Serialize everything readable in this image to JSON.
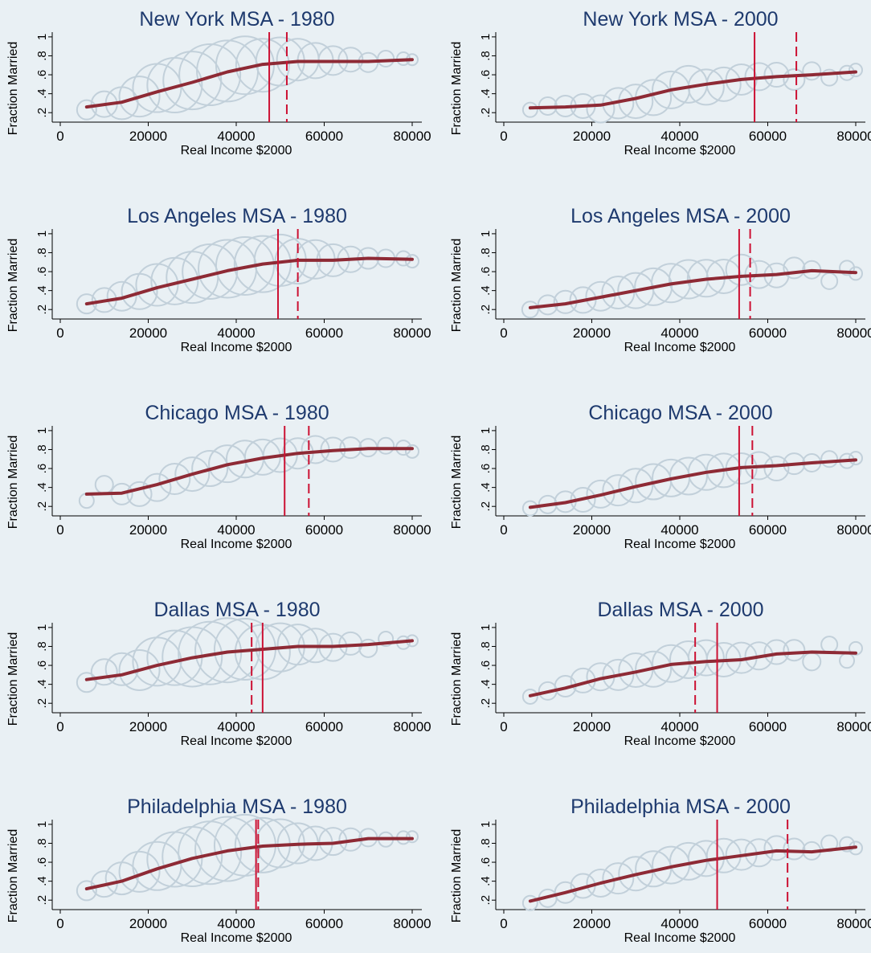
{
  "colors": {
    "background": "#e9f0f4",
    "title": "#1e3a6e",
    "bubble": "#c2d0da",
    "fit_line": "#8e2a35",
    "vline": "#cc1133",
    "axis": "#000000"
  },
  "chart_data": [
    {
      "type": "scatter",
      "title": "New York MSA - 1980",
      "xlabel": "Real Income $2000",
      "ylabel": "Fraction Married",
      "xlim": [
        0,
        80000
      ],
      "ylim": [
        0.1,
        1.05
      ],
      "x_ticks": [
        "0",
        "20000",
        "40000",
        "60000",
        "80000"
      ],
      "y_ticks": [
        ".2",
        ".4",
        ".6",
        ".8",
        "1"
      ],
      "solid_vline": 47500,
      "dashed_vline": 51500,
      "fit": {
        "x": [
          6000,
          14000,
          22000,
          30000,
          38000,
          46000,
          54000,
          62000,
          70000,
          80000
        ],
        "y": [
          0.26,
          0.31,
          0.42,
          0.52,
          0.63,
          0.71,
          0.74,
          0.74,
          0.74,
          0.76
        ]
      },
      "points": {
        "x": [
          6000,
          10000,
          14000,
          18000,
          22000,
          26000,
          30000,
          34000,
          38000,
          42000,
          46000,
          50000,
          54000,
          58000,
          62000,
          66000,
          70000,
          74000,
          78000,
          80000
        ],
        "y": [
          0.23,
          0.29,
          0.3,
          0.37,
          0.46,
          0.49,
          0.54,
          0.6,
          0.64,
          0.7,
          0.7,
          0.74,
          0.76,
          0.75,
          0.75,
          0.76,
          0.73,
          0.77,
          0.77,
          0.76
        ],
        "size": [
          12,
          16,
          20,
          25,
          30,
          34,
          36,
          38,
          38,
          36,
          33,
          30,
          26,
          22,
          18,
          15,
          12,
          10,
          8,
          7
        ]
      }
    },
    {
      "type": "scatter",
      "title": "New York MSA - 2000",
      "xlabel": "Real Income $2000",
      "ylabel": "Fraction Married",
      "xlim": [
        0,
        80000
      ],
      "ylim": [
        0.1,
        1.05
      ],
      "x_ticks": [
        "0",
        "20000",
        "40000",
        "60000",
        "80000"
      ],
      "y_ticks": [
        ".2",
        ".4",
        ".6",
        ".8",
        "1"
      ],
      "solid_vline": 57000,
      "dashed_vline": 66500,
      "fit": {
        "x": [
          6000,
          14000,
          22000,
          30000,
          38000,
          46000,
          54000,
          62000,
          70000,
          80000
        ],
        "y": [
          0.25,
          0.26,
          0.28,
          0.35,
          0.44,
          0.5,
          0.55,
          0.58,
          0.6,
          0.63
        ]
      },
      "points": {
        "x": [
          6000,
          10000,
          14000,
          18000,
          22000,
          26000,
          30000,
          34000,
          38000,
          42000,
          46000,
          50000,
          54000,
          58000,
          62000,
          66000,
          70000,
          74000,
          78000,
          80000
        ],
        "y": [
          0.23,
          0.27,
          0.27,
          0.27,
          0.24,
          0.3,
          0.32,
          0.36,
          0.44,
          0.5,
          0.47,
          0.5,
          0.55,
          0.58,
          0.6,
          0.55,
          0.64,
          0.57,
          0.62,
          0.65
        ],
        "size": [
          9,
          11,
          13,
          15,
          17,
          19,
          21,
          22,
          23,
          23,
          22,
          21,
          19,
          17,
          15,
          13,
          11,
          10,
          9,
          8
        ]
      }
    },
    {
      "type": "scatter",
      "title": "Los Angeles MSA - 1980",
      "xlabel": "Real Income $2000",
      "ylabel": "Fraction Married",
      "xlim": [
        0,
        80000
      ],
      "ylim": [
        0.1,
        1.05
      ],
      "x_ticks": [
        "0",
        "20000",
        "40000",
        "60000",
        "80000"
      ],
      "y_ticks": [
        ".2",
        ".4",
        ".6",
        ".8",
        "1"
      ],
      "solid_vline": 49500,
      "dashed_vline": 54000,
      "fit": {
        "x": [
          6000,
          14000,
          22000,
          30000,
          38000,
          46000,
          54000,
          62000,
          70000,
          80000
        ],
        "y": [
          0.26,
          0.32,
          0.43,
          0.52,
          0.61,
          0.68,
          0.72,
          0.72,
          0.74,
          0.73
        ]
      },
      "points": {
        "x": [
          6000,
          10000,
          14000,
          18000,
          22000,
          26000,
          30000,
          34000,
          38000,
          42000,
          46000,
          50000,
          54000,
          58000,
          62000,
          66000,
          70000,
          74000,
          78000,
          80000
        ],
        "y": [
          0.26,
          0.3,
          0.34,
          0.39,
          0.46,
          0.5,
          0.54,
          0.6,
          0.63,
          0.66,
          0.68,
          0.72,
          0.71,
          0.73,
          0.72,
          0.73,
          0.74,
          0.74,
          0.74,
          0.71
        ],
        "size": [
          12,
          15,
          18,
          22,
          26,
          29,
          32,
          34,
          36,
          36,
          35,
          32,
          28,
          24,
          20,
          16,
          13,
          11,
          9,
          8
        ]
      }
    },
    {
      "type": "scatter",
      "title": "Los Angeles MSA - 2000",
      "xlabel": "Real Income $2000",
      "ylabel": "Fraction Married",
      "xlim": [
        0,
        80000
      ],
      "ylim": [
        0.1,
        1.05
      ],
      "x_ticks": [
        "0",
        "20000",
        "40000",
        "60000",
        "80000"
      ],
      "y_ticks": [
        ".2",
        ".4",
        ".6",
        ".8",
        "1"
      ],
      "solid_vline": 53500,
      "dashed_vline": 56000,
      "fit": {
        "x": [
          6000,
          14000,
          22000,
          30000,
          38000,
          46000,
          54000,
          62000,
          70000,
          80000
        ],
        "y": [
          0.22,
          0.26,
          0.33,
          0.4,
          0.47,
          0.52,
          0.55,
          0.57,
          0.61,
          0.59
        ]
      },
      "points": {
        "x": [
          6000,
          10000,
          14000,
          18000,
          22000,
          26000,
          30000,
          34000,
          38000,
          42000,
          46000,
          50000,
          54000,
          58000,
          62000,
          66000,
          70000,
          74000,
          78000,
          80000
        ],
        "y": [
          0.2,
          0.25,
          0.28,
          0.3,
          0.34,
          0.38,
          0.4,
          0.44,
          0.48,
          0.52,
          0.53,
          0.55,
          0.62,
          0.57,
          0.56,
          0.64,
          0.62,
          0.5,
          0.64,
          0.58
        ],
        "size": [
          10,
          12,
          14,
          16,
          18,
          20,
          22,
          23,
          24,
          24,
          23,
          21,
          19,
          17,
          15,
          13,
          11,
          10,
          9,
          8
        ]
      }
    },
    {
      "type": "scatter",
      "title": "Chicago MSA - 1980",
      "xlabel": "Real Income $2000",
      "ylabel": "Fraction Married",
      "xlim": [
        0,
        80000
      ],
      "ylim": [
        0.1,
        1.05
      ],
      "x_ticks": [
        "0",
        "20000",
        "40000",
        "60000",
        "80000"
      ],
      "y_ticks": [
        ".2",
        ".4",
        ".6",
        ".8",
        "1"
      ],
      "solid_vline": 51000,
      "dashed_vline": 56500,
      "fit": {
        "x": [
          6000,
          14000,
          22000,
          30000,
          38000,
          46000,
          54000,
          62000,
          70000,
          80000
        ],
        "y": [
          0.33,
          0.34,
          0.43,
          0.54,
          0.64,
          0.71,
          0.76,
          0.79,
          0.81,
          0.81
        ]
      },
      "points": {
        "x": [
          6000,
          10000,
          14000,
          18000,
          22000,
          26000,
          30000,
          34000,
          38000,
          42000,
          46000,
          50000,
          54000,
          58000,
          62000,
          66000,
          70000,
          74000,
          78000,
          80000
        ],
        "y": [
          0.26,
          0.43,
          0.33,
          0.33,
          0.4,
          0.49,
          0.54,
          0.6,
          0.65,
          0.7,
          0.72,
          0.74,
          0.76,
          0.8,
          0.8,
          0.82,
          0.82,
          0.84,
          0.82,
          0.78
        ],
        "size": [
          9,
          11,
          13,
          15,
          17,
          19,
          21,
          22,
          23,
          23,
          22,
          21,
          19,
          17,
          15,
          13,
          11,
          10,
          9,
          8
        ]
      }
    },
    {
      "type": "scatter",
      "title": "Chicago MSA - 2000",
      "xlabel": "Real Income $2000",
      "ylabel": "Fraction Married",
      "xlim": [
        0,
        80000
      ],
      "ylim": [
        0.1,
        1.05
      ],
      "x_ticks": [
        "0",
        "20000",
        "40000",
        "60000",
        "80000"
      ],
      "y_ticks": [
        ".2",
        ".4",
        ".6",
        ".8",
        "1"
      ],
      "solid_vline": 53500,
      "dashed_vline": 56500,
      "fit": {
        "x": [
          6000,
          14000,
          22000,
          30000,
          38000,
          46000,
          54000,
          62000,
          70000,
          80000
        ],
        "y": [
          0.19,
          0.24,
          0.32,
          0.41,
          0.49,
          0.56,
          0.61,
          0.63,
          0.66,
          0.69
        ]
      },
      "points": {
        "x": [
          6000,
          10000,
          14000,
          18000,
          22000,
          26000,
          30000,
          34000,
          38000,
          42000,
          46000,
          50000,
          54000,
          58000,
          62000,
          66000,
          70000,
          74000,
          78000,
          80000
        ],
        "y": [
          0.18,
          0.22,
          0.25,
          0.27,
          0.33,
          0.37,
          0.42,
          0.46,
          0.5,
          0.52,
          0.56,
          0.58,
          0.6,
          0.63,
          0.6,
          0.65,
          0.66,
          0.7,
          0.68,
          0.71
        ],
        "size": [
          9,
          11,
          13,
          15,
          17,
          19,
          21,
          22,
          23,
          23,
          22,
          21,
          19,
          17,
          15,
          13,
          11,
          10,
          9,
          8
        ]
      }
    },
    {
      "type": "scatter",
      "title": "Dallas MSA - 1980",
      "xlabel": "Real Income $2000",
      "ylabel": "Fraction Married",
      "xlim": [
        0,
        80000
      ],
      "ylim": [
        0.1,
        1.05
      ],
      "x_ticks": [
        "0",
        "20000",
        "40000",
        "60000",
        "80000"
      ],
      "y_ticks": [
        ".2",
        ".4",
        ".6",
        ".8",
        "1"
      ],
      "solid_vline": 46000,
      "dashed_vline": 43500,
      "fit": {
        "x": [
          6000,
          14000,
          22000,
          30000,
          38000,
          46000,
          54000,
          62000,
          70000,
          80000
        ],
        "y": [
          0.45,
          0.5,
          0.6,
          0.68,
          0.74,
          0.77,
          0.8,
          0.8,
          0.82,
          0.86
        ]
      },
      "points": {
        "x": [
          6000,
          10000,
          14000,
          18000,
          22000,
          26000,
          30000,
          34000,
          38000,
          42000,
          46000,
          50000,
          54000,
          58000,
          62000,
          66000,
          70000,
          74000,
          78000,
          80000
        ],
        "y": [
          0.42,
          0.53,
          0.56,
          0.55,
          0.64,
          0.68,
          0.69,
          0.73,
          0.76,
          0.77,
          0.74,
          0.79,
          0.82,
          0.81,
          0.79,
          0.83,
          0.78,
          0.88,
          0.84,
          0.86
        ],
        "size": [
          12,
          16,
          20,
          25,
          30,
          34,
          37,
          39,
          40,
          38,
          34,
          30,
          25,
          21,
          17,
          14,
          11,
          9,
          8,
          7
        ]
      }
    },
    {
      "type": "scatter",
      "title": "Dallas MSA - 2000",
      "xlabel": "Real Income $2000",
      "ylabel": "Fraction Married",
      "xlim": [
        0,
        80000
      ],
      "ylim": [
        0.1,
        1.05
      ],
      "x_ticks": [
        "0",
        "20000",
        "40000",
        "60000",
        "80000"
      ],
      "y_ticks": [
        ".2",
        ".4",
        ".6",
        ".8",
        "1"
      ],
      "solid_vline": 48500,
      "dashed_vline": 43500,
      "fit": {
        "x": [
          6000,
          14000,
          22000,
          30000,
          38000,
          46000,
          54000,
          62000,
          70000,
          80000
        ],
        "y": [
          0.28,
          0.36,
          0.46,
          0.53,
          0.61,
          0.64,
          0.66,
          0.72,
          0.74,
          0.73
        ]
      },
      "points": {
        "x": [
          6000,
          10000,
          14000,
          18000,
          22000,
          26000,
          30000,
          34000,
          38000,
          42000,
          46000,
          50000,
          54000,
          58000,
          62000,
          66000,
          70000,
          74000,
          78000,
          80000
        ],
        "y": [
          0.27,
          0.33,
          0.38,
          0.44,
          0.48,
          0.5,
          0.55,
          0.56,
          0.62,
          0.66,
          0.68,
          0.66,
          0.68,
          0.7,
          0.74,
          0.76,
          0.64,
          0.82,
          0.65,
          0.78
        ],
        "size": [
          9,
          11,
          13,
          15,
          17,
          19,
          21,
          22,
          23,
          23,
          22,
          21,
          19,
          17,
          15,
          13,
          11,
          10,
          9,
          8
        ]
      }
    },
    {
      "type": "scatter",
      "title": "Philadelphia MSA - 1980",
      "xlabel": "Real Income $2000",
      "ylabel": "Fraction Married",
      "xlim": [
        0,
        80000
      ],
      "ylim": [
        0.1,
        1.05
      ],
      "x_ticks": [
        "0",
        "20000",
        "40000",
        "60000",
        "80000"
      ],
      "y_ticks": [
        ".2",
        ".4",
        ".6",
        ".8",
        "1"
      ],
      "solid_vline": 44500,
      "dashed_vline": 45000,
      "fit": {
        "x": [
          6000,
          14000,
          22000,
          30000,
          38000,
          46000,
          54000,
          62000,
          70000,
          80000
        ],
        "y": [
          0.32,
          0.4,
          0.53,
          0.64,
          0.72,
          0.77,
          0.79,
          0.8,
          0.85,
          0.85
        ]
      },
      "points": {
        "x": [
          6000,
          10000,
          14000,
          18000,
          22000,
          26000,
          30000,
          34000,
          38000,
          42000,
          46000,
          50000,
          54000,
          58000,
          62000,
          66000,
          70000,
          74000,
          78000,
          80000
        ],
        "y": [
          0.3,
          0.37,
          0.43,
          0.5,
          0.56,
          0.63,
          0.66,
          0.7,
          0.74,
          0.78,
          0.78,
          0.8,
          0.8,
          0.8,
          0.82,
          0.84,
          0.86,
          0.84,
          0.86,
          0.87
        ],
        "size": [
          12,
          16,
          20,
          25,
          30,
          34,
          37,
          39,
          40,
          38,
          34,
          30,
          25,
          21,
          17,
          14,
          11,
          9,
          8,
          7
        ]
      }
    },
    {
      "type": "scatter",
      "title": "Philadelphia MSA - 2000",
      "xlabel": "Real Income $2000",
      "ylabel": "Fraction Married",
      "xlim": [
        0,
        80000
      ],
      "ylim": [
        0.1,
        1.05
      ],
      "x_ticks": [
        "0",
        "20000",
        "40000",
        "60000",
        "80000"
      ],
      "y_ticks": [
        ".2",
        ".4",
        ".6",
        ".8",
        "1"
      ],
      "solid_vline": 48500,
      "dashed_vline": 64500,
      "fit": {
        "x": [
          6000,
          14000,
          22000,
          30000,
          38000,
          46000,
          54000,
          62000,
          70000,
          80000
        ],
        "y": [
          0.19,
          0.28,
          0.38,
          0.47,
          0.55,
          0.62,
          0.67,
          0.72,
          0.71,
          0.76
        ]
      },
      "points": {
        "x": [
          6000,
          10000,
          14000,
          18000,
          22000,
          26000,
          30000,
          34000,
          38000,
          42000,
          46000,
          50000,
          54000,
          58000,
          62000,
          66000,
          70000,
          74000,
          78000,
          80000
        ],
        "y": [
          0.17,
          0.22,
          0.28,
          0.35,
          0.38,
          0.43,
          0.48,
          0.53,
          0.57,
          0.61,
          0.64,
          0.67,
          0.68,
          0.7,
          0.75,
          0.74,
          0.72,
          0.8,
          0.79,
          0.75
        ],
        "size": [
          9,
          11,
          13,
          15,
          17,
          19,
          21,
          22,
          23,
          23,
          22,
          21,
          19,
          17,
          15,
          13,
          11,
          10,
          9,
          8
        ]
      }
    }
  ]
}
